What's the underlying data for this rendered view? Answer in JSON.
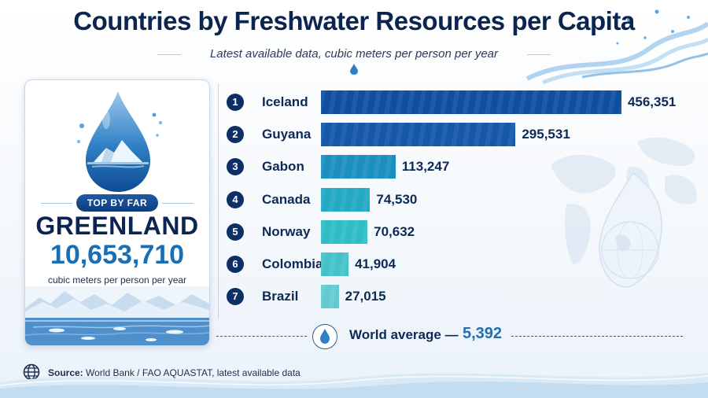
{
  "title": "Countries by Freshwater Resources per Capita",
  "subtitle": "Latest available data, cubic meters per person per year",
  "highlight": {
    "badge": "TOP BY FAR",
    "country": "GREENLAND",
    "value": "10,653,710",
    "unit": "cubic meters per person per year"
  },
  "chart_data": {
    "type": "bar",
    "orientation": "horizontal",
    "categories": [
      "Iceland",
      "Guyana",
      "Gabon",
      "Canada",
      "Norway",
      "Colombia",
      "Brazil"
    ],
    "values": [
      456351,
      295531,
      113247,
      74530,
      70632,
      41904,
      27015
    ],
    "labels": [
      "456,351",
      "295,531",
      "113,247",
      "74,530",
      "70,632",
      "41,904",
      "27,015"
    ],
    "ranks": [
      "1",
      "2",
      "3",
      "4",
      "5",
      "6",
      "7"
    ],
    "colors": [
      "#0f4fa0",
      "#1557a8",
      "#1b8fbd",
      "#22a9c4",
      "#2fbcc4",
      "#45c2c9",
      "#63cbcf"
    ],
    "xlim": [
      0,
      460000
    ]
  },
  "world_average": {
    "label": "World average —",
    "value": "5,392"
  },
  "source": {
    "label": "Source:",
    "text": "World Bank / FAO AQUASTAT, latest available data"
  }
}
